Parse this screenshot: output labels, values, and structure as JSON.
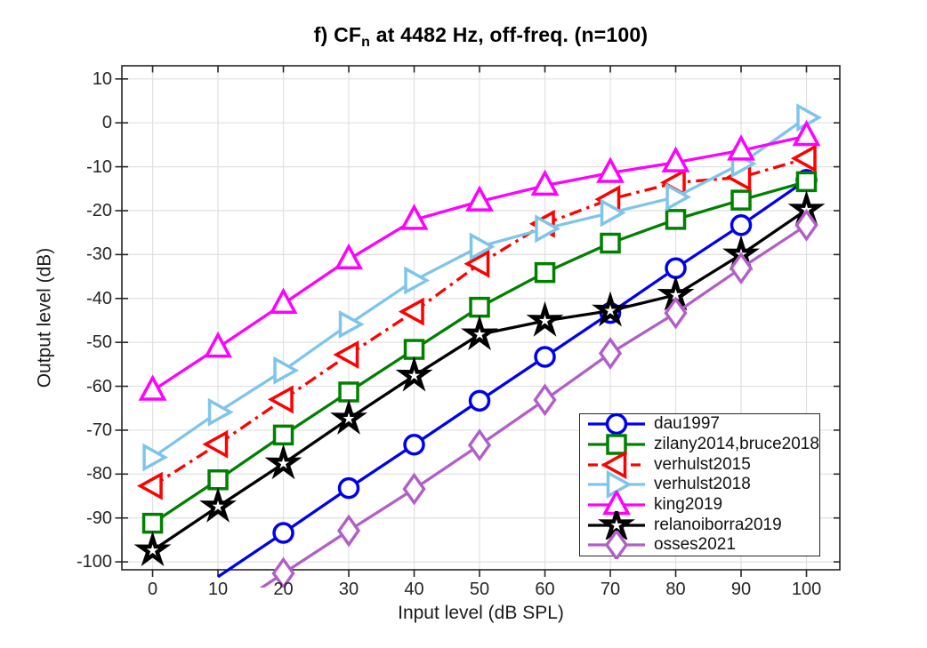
{
  "title": {
    "prefix": "f) CF",
    "sub": "n",
    "suffix": " at 4482 Hz, off-freq. (n=100)"
  },
  "axes": {
    "xlabel": "Input level (dB SPL)",
    "ylabel": "Output level (dB)",
    "x_ticks": [
      0,
      10,
      20,
      30,
      40,
      50,
      60,
      70,
      80,
      90,
      100
    ],
    "y_ticks": [
      10,
      0,
      -10,
      -20,
      -30,
      -40,
      -50,
      -60,
      -70,
      -80,
      -90,
      -100
    ],
    "xlim": [
      -4.7,
      105.1
    ],
    "ylim": [
      -101.8,
      13.0
    ],
    "grid": true,
    "grid_color": "#e0e0e0",
    "axis_color": "#262626",
    "tick_label_color": "#262626"
  },
  "chart_data": {
    "type": "line",
    "title": "f) CF_n at 4482 Hz, off-freq. (n=100)",
    "xlabel": "Input level (dB SPL)",
    "ylabel": "Output level (dB)",
    "xlim": [
      -4.7,
      105.1
    ],
    "ylim": [
      -101.8,
      13.0
    ],
    "legend_position": "lower right",
    "series": [
      {
        "name": "dau1997",
        "color": "#0000ee",
        "marker": "circle",
        "line": "solid",
        "x": [
          10,
          20,
          30,
          40,
          50,
          60,
          70,
          80,
          90,
          100
        ],
        "y": [
          -103.4,
          -93.4,
          -83.2,
          -73.3,
          -63.3,
          -53.3,
          -43.3,
          -33.1,
          -23.3,
          -13.0
        ]
      },
      {
        "name": "zilany2014,bruce2018",
        "color": "#008000",
        "marker": "square",
        "line": "solid",
        "x": [
          0,
          10,
          20,
          30,
          40,
          50,
          60,
          70,
          80,
          90,
          100
        ],
        "y": [
          -91.2,
          -81.3,
          -71.1,
          -61.3,
          -51.6,
          -42.0,
          -34.1,
          -27.4,
          -22.0,
          -17.6,
          -13.4
        ]
      },
      {
        "name": "verhulst2015",
        "color": "#ff0000",
        "marker": "triangle-left",
        "line": "dashdot",
        "x": [
          0,
          10,
          20,
          30,
          40,
          50,
          60,
          70,
          80,
          90,
          100
        ],
        "y": [
          -82.7,
          -73.2,
          -63.0,
          -52.8,
          -43.0,
          -32.1,
          -23.0,
          -17.4,
          -13.6,
          -12.4,
          -8.1
        ]
      },
      {
        "name": "verhulst2018",
        "color": "#7fc5ea",
        "marker": "triangle-right",
        "line": "solid",
        "x": [
          0,
          10,
          20,
          30,
          40,
          50,
          60,
          70,
          80,
          90,
          100
        ],
        "y": [
          -76.2,
          -65.9,
          -56.4,
          -45.9,
          -35.9,
          -28.2,
          -24.1,
          -20.5,
          -16.9,
          -9.3,
          1.2
        ]
      },
      {
        "name": "king2019",
        "color": "#ff00ff",
        "marker": "triangle-up",
        "line": "solid",
        "x": [
          0,
          10,
          20,
          30,
          40,
          50,
          60,
          70,
          80,
          90,
          100
        ],
        "y": [
          -61.0,
          -51.2,
          -41.2,
          -31.1,
          -22.1,
          -17.9,
          -14.3,
          -11.4,
          -9.0,
          -6.3,
          -3.0
        ]
      },
      {
        "name": "relanoiborra2019",
        "color": "#000000",
        "marker": "star",
        "line": "solid",
        "x": [
          0,
          10,
          20,
          30,
          40,
          50,
          60,
          70,
          80,
          90,
          100
        ],
        "y": [
          -97.4,
          -87.4,
          -77.6,
          -67.4,
          -57.6,
          -48.2,
          -45.1,
          -42.8,
          -39.2,
          -30.0,
          -19.8
        ]
      },
      {
        "name": "osses2021",
        "color": "#b15fc8",
        "marker": "diamond",
        "line": "solid",
        "x": [
          10,
          20,
          30,
          40,
          50,
          60,
          70,
          80,
          90,
          100
        ],
        "y": [
          -112.5,
          -102.6,
          -92.9,
          -83.4,
          -73.4,
          -63.1,
          -52.5,
          -43.3,
          -33.1,
          -23.3
        ]
      }
    ]
  }
}
